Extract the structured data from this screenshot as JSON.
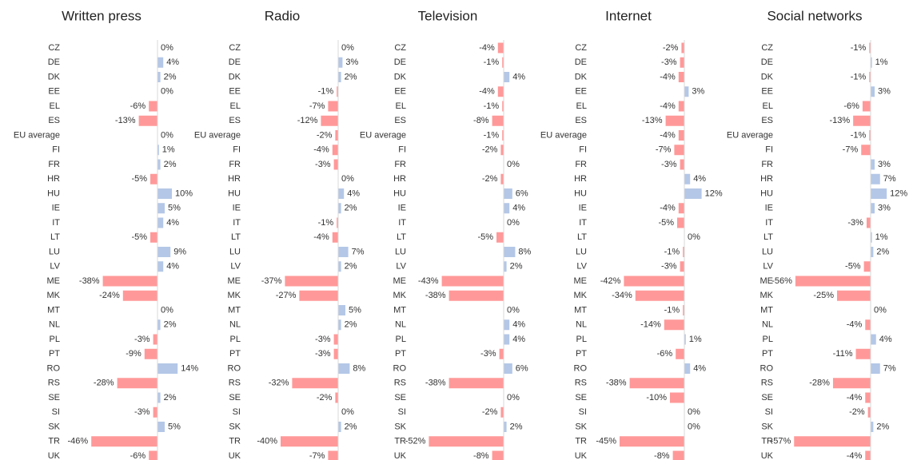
{
  "chart_data": [
    {
      "type": "bar",
      "title": "Written press",
      "color": "#b4c7e7",
      "negative_color": "#ff9999",
      "xlim": [
        -55,
        15
      ],
      "categories": [
        "CZ",
        "DE",
        "DK",
        "EE",
        "EL",
        "ES",
        "EU average",
        "FI",
        "FR",
        "HR",
        "HU",
        "IE",
        "IT",
        "LT",
        "LU",
        "LV",
        "ME",
        "MK",
        "MT",
        "NL",
        "PL",
        "PT",
        "RO",
        "RS",
        "SE",
        "SI",
        "SK",
        "TR",
        "UK"
      ],
      "values": [
        0,
        4,
        2,
        0,
        -6,
        -13,
        0,
        1,
        2,
        -5,
        10,
        5,
        4,
        -5,
        9,
        4,
        -38,
        -24,
        0,
        2,
        -3,
        -9,
        14,
        -28,
        2,
        -3,
        5,
        -46,
        -6
      ],
      "value_labels": [
        "0%",
        "4%",
        "2%",
        "0%",
        "-6%",
        "-13%",
        "0%",
        "1%",
        "2%",
        "-5%",
        "10%",
        "5%",
        "4%",
        "-5%",
        "9%",
        "4%",
        "-38%",
        "-24%",
        "0%",
        "2%",
        "-3%",
        "-9%",
        "14%",
        "-28%",
        "2%",
        "-3%",
        "5%",
        "-46%",
        "-6%"
      ]
    },
    {
      "type": "bar",
      "title": "Radio",
      "color": "#b4c7e7",
      "negative_color": "#ff9999",
      "xlim": [
        -55,
        15
      ],
      "categories": [
        "CZ",
        "DE",
        "DK",
        "EE",
        "EL",
        "ES",
        "EU average",
        "FI",
        "FR",
        "HR",
        "HU",
        "IE",
        "IT",
        "LT",
        "LU",
        "LV",
        "ME",
        "MK",
        "MT",
        "NL",
        "PL",
        "PT",
        "RO",
        "RS",
        "SE",
        "SI",
        "SK",
        "TR",
        "UK"
      ],
      "values": [
        0,
        3,
        2,
        -1,
        -7,
        -12,
        -2,
        -4,
        -3,
        0,
        4,
        2,
        -1,
        -4,
        7,
        2,
        -37,
        -27,
        5,
        2,
        -3,
        -3,
        8,
        -32,
        -2,
        0,
        2,
        -40,
        -7
      ],
      "value_labels": [
        "0%",
        "3%",
        "2%",
        "-1%",
        "-7%",
        "-12%",
        "-2%",
        "-4%",
        "-3%",
        "0%",
        "4%",
        "2%",
        "-1%",
        "-4%",
        "7%",
        "2%",
        "-37%",
        "-27%",
        "5%",
        "2%",
        "-3%",
        "-3%",
        "8%",
        "-32%",
        "-2%",
        "0%",
        "2%",
        "-40%",
        "-7%"
      ]
    },
    {
      "type": "bar",
      "title": "Television",
      "color": "#b4c7e7",
      "negative_color": "#ff9999",
      "xlim": [
        -55,
        15
      ],
      "categories": [
        "CZ",
        "DE",
        "DK",
        "EE",
        "EL",
        "ES",
        "EU average",
        "FI",
        "FR",
        "HR",
        "HU",
        "IE",
        "IT",
        "LT",
        "LU",
        "LV",
        "ME",
        "MK",
        "MT",
        "NL",
        "PL",
        "PT",
        "RO",
        "RS",
        "SE",
        "SI",
        "SK",
        "TR",
        "UK"
      ],
      "values": [
        -4,
        -1,
        4,
        -4,
        -1,
        -8,
        -1,
        -2,
        0,
        -2,
        6,
        4,
        0,
        -5,
        8,
        2,
        -43,
        -38,
        0,
        4,
        4,
        -3,
        6,
        -38,
        0,
        -2,
        2,
        -52,
        -8
      ],
      "value_labels": [
        "-4%",
        "-1%",
        "4%",
        "-4%",
        "-1%",
        "-8%",
        "-1%",
        "-2%",
        "0%",
        "-2%",
        "6%",
        "4%",
        "0%",
        "-5%",
        "8%",
        "2%",
        "-43%",
        "-38%",
        "0%",
        "4%",
        "4%",
        "-3%",
        "6%",
        "-38%",
        "0%",
        "-2%",
        "2%",
        "-52%",
        "-8%"
      ]
    },
    {
      "type": "bar",
      "title": "Internet",
      "color": "#b4c7e7",
      "negative_color": "#ff9999",
      "xlim": [
        -55,
        15
      ],
      "categories": [
        "CZ",
        "DE",
        "DK",
        "EE",
        "EL",
        "ES",
        "EU average",
        "FI",
        "FR",
        "HR",
        "HU",
        "IE",
        "IT",
        "LT",
        "LU",
        "LV",
        "ME",
        "MK",
        "MT",
        "NL",
        "PL",
        "PT",
        "RO",
        "RS",
        "SE",
        "SI",
        "SK",
        "TR",
        "UK"
      ],
      "values": [
        -2,
        -3,
        -4,
        3,
        -4,
        -13,
        -4,
        -7,
        -3,
        4,
        12,
        -4,
        -5,
        0,
        -1,
        -3,
        -42,
        -34,
        -1,
        -14,
        1,
        -6,
        4,
        -38,
        -10,
        0,
        0,
        -45,
        -8
      ],
      "value_labels": [
        "-2%",
        "-3%",
        "-4%",
        "3%",
        "-4%",
        "-13%",
        "-4%",
        "-7%",
        "-3%",
        "4%",
        "12%",
        "-4%",
        "-5%",
        "0%",
        "-1%",
        "-3%",
        "-42%",
        "-34%",
        "-1%",
        "-14%",
        "1%",
        "-6%",
        "4%",
        "-38%",
        "-10%",
        "0%",
        "0%",
        "-45%",
        "-8%"
      ]
    },
    {
      "type": "bar",
      "title": "Social networks",
      "color": "#b4c7e7",
      "negative_color": "#ff9999",
      "xlim": [
        -60,
        15
      ],
      "categories": [
        "CZ",
        "DE",
        "DK",
        "EE",
        "EL",
        "ES",
        "EU average",
        "FI",
        "FR",
        "HR",
        "HU",
        "IE",
        "IT",
        "LT",
        "LU",
        "LV",
        "ME",
        "MK",
        "MT",
        "NL",
        "PL",
        "PT",
        "RO",
        "RS",
        "SE",
        "SI",
        "SK",
        "TR",
        "UK"
      ],
      "values": [
        -1,
        1,
        -1,
        3,
        -6,
        -13,
        -1,
        -7,
        3,
        7,
        12,
        3,
        -3,
        1,
        2,
        -5,
        -56,
        -25,
        0,
        -4,
        4,
        -11,
        7,
        -28,
        -4,
        -2,
        2,
        -57,
        -4
      ],
      "value_labels": [
        "-1%",
        "1%",
        "-1%",
        "3%",
        "-6%",
        "-13%",
        "-1%",
        "-7%",
        "3%",
        "7%",
        "12%",
        "3%",
        "-3%",
        "1%",
        "2%",
        "-5%",
        "-56%",
        "-25%",
        "0%",
        "-4%",
        "4%",
        "-11%",
        "7%",
        "-28%",
        "-4%",
        "-2%",
        "2%",
        "-57%",
        "-4%"
      ]
    }
  ]
}
